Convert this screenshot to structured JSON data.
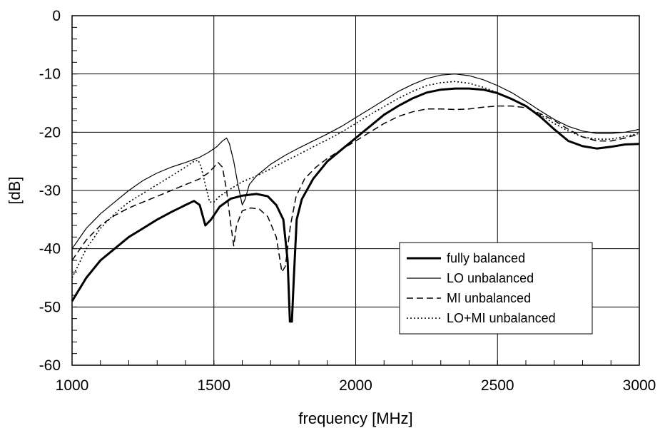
{
  "chart_data": {
    "type": "line",
    "xlabel": "frequency [MHz]",
    "ylabel": "[dB]",
    "xlim": [
      1000,
      3000
    ],
    "ylim": [
      -60,
      0
    ],
    "xticks": [
      1000,
      1500,
      2000,
      2500,
      3000
    ],
    "yticks": [
      0,
      -10,
      -20,
      -30,
      -40,
      -50,
      -60
    ],
    "x_minor_step": 100,
    "y_minor_step": 2,
    "grid": true,
    "legend_position": "lower-right",
    "series": [
      {
        "name": "fully balanced",
        "style": "solid-thick",
        "points": [
          [
            1000,
            -49
          ],
          [
            1050,
            -45
          ],
          [
            1100,
            -42
          ],
          [
            1150,
            -40
          ],
          [
            1200,
            -38
          ],
          [
            1250,
            -36.5
          ],
          [
            1300,
            -35
          ],
          [
            1350,
            -33.7
          ],
          [
            1400,
            -32.5
          ],
          [
            1430,
            -31.8
          ],
          [
            1450,
            -32.5
          ],
          [
            1470,
            -36
          ],
          [
            1490,
            -35
          ],
          [
            1520,
            -32.8
          ],
          [
            1560,
            -31.4
          ],
          [
            1600,
            -30.9
          ],
          [
            1650,
            -30.6
          ],
          [
            1690,
            -31
          ],
          [
            1720,
            -32.5
          ],
          [
            1745,
            -35
          ],
          [
            1760,
            -42
          ],
          [
            1768,
            -52.5
          ],
          [
            1775,
            -52.5
          ],
          [
            1782,
            -45
          ],
          [
            1792,
            -35
          ],
          [
            1810,
            -31.5
          ],
          [
            1850,
            -28
          ],
          [
            1900,
            -25
          ],
          [
            1950,
            -23
          ],
          [
            2000,
            -21
          ],
          [
            2050,
            -19
          ],
          [
            2100,
            -17
          ],
          [
            2150,
            -15.5
          ],
          [
            2200,
            -14.2
          ],
          [
            2250,
            -13.2
          ],
          [
            2300,
            -12.7
          ],
          [
            2350,
            -12.5
          ],
          [
            2400,
            -12.5
          ],
          [
            2450,
            -12.7
          ],
          [
            2500,
            -13.3
          ],
          [
            2550,
            -14.3
          ],
          [
            2600,
            -15.5
          ],
          [
            2650,
            -17.3
          ],
          [
            2700,
            -19.5
          ],
          [
            2750,
            -21.5
          ],
          [
            2800,
            -22.4
          ],
          [
            2850,
            -22.8
          ],
          [
            2900,
            -22.5
          ],
          [
            2950,
            -22.1
          ],
          [
            3000,
            -22
          ]
        ]
      },
      {
        "name": "LO unbalanced",
        "style": "solid-thin",
        "points": [
          [
            1000,
            -40
          ],
          [
            1050,
            -36.5
          ],
          [
            1100,
            -34
          ],
          [
            1150,
            -32
          ],
          [
            1200,
            -30
          ],
          [
            1250,
            -28.3
          ],
          [
            1300,
            -27
          ],
          [
            1350,
            -26
          ],
          [
            1400,
            -25.2
          ],
          [
            1450,
            -24.3
          ],
          [
            1480,
            -23.5
          ],
          [
            1510,
            -22.5
          ],
          [
            1530,
            -21.5
          ],
          [
            1545,
            -21
          ],
          [
            1555,
            -22
          ],
          [
            1570,
            -25
          ],
          [
            1585,
            -29
          ],
          [
            1600,
            -32.5
          ],
          [
            1610,
            -31.5
          ],
          [
            1625,
            -29
          ],
          [
            1650,
            -27.5
          ],
          [
            1700,
            -25.5
          ],
          [
            1750,
            -24
          ],
          [
            1800,
            -22.7
          ],
          [
            1850,
            -21.5
          ],
          [
            1900,
            -20.3
          ],
          [
            1950,
            -19
          ],
          [
            2000,
            -17.5
          ],
          [
            2050,
            -16
          ],
          [
            2100,
            -14.5
          ],
          [
            2150,
            -13
          ],
          [
            2200,
            -11.8
          ],
          [
            2250,
            -10.8
          ],
          [
            2300,
            -10.2
          ],
          [
            2350,
            -10
          ],
          [
            2400,
            -10.3
          ],
          [
            2450,
            -11
          ],
          [
            2500,
            -12
          ],
          [
            2550,
            -13.2
          ],
          [
            2600,
            -14.7
          ],
          [
            2650,
            -16.3
          ],
          [
            2700,
            -17.8
          ],
          [
            2750,
            -19
          ],
          [
            2800,
            -19.8
          ],
          [
            2850,
            -20.2
          ],
          [
            2900,
            -20.2
          ],
          [
            2950,
            -20
          ],
          [
            3000,
            -19.5
          ]
        ]
      },
      {
        "name": "MI unbalanced",
        "style": "dashed",
        "points": [
          [
            1000,
            -42
          ],
          [
            1050,
            -38.5
          ],
          [
            1100,
            -36
          ],
          [
            1150,
            -34.3
          ],
          [
            1200,
            -33
          ],
          [
            1250,
            -32
          ],
          [
            1300,
            -31
          ],
          [
            1350,
            -30
          ],
          [
            1400,
            -29
          ],
          [
            1450,
            -28
          ],
          [
            1480,
            -27
          ],
          [
            1500,
            -26
          ],
          [
            1515,
            -25.2
          ],
          [
            1530,
            -26
          ],
          [
            1545,
            -30
          ],
          [
            1560,
            -36
          ],
          [
            1570,
            -39.5
          ],
          [
            1580,
            -36
          ],
          [
            1600,
            -33.5
          ],
          [
            1630,
            -33
          ],
          [
            1660,
            -33.2
          ],
          [
            1690,
            -34.5
          ],
          [
            1720,
            -38
          ],
          [
            1740,
            -44
          ],
          [
            1752,
            -43
          ],
          [
            1770,
            -36
          ],
          [
            1790,
            -31
          ],
          [
            1820,
            -28
          ],
          [
            1860,
            -26
          ],
          [
            1900,
            -24.5
          ],
          [
            1950,
            -23
          ],
          [
            2000,
            -21.5
          ],
          [
            2050,
            -20
          ],
          [
            2100,
            -18.5
          ],
          [
            2150,
            -17.3
          ],
          [
            2200,
            -16.5
          ],
          [
            2250,
            -16
          ],
          [
            2300,
            -16
          ],
          [
            2350,
            -16.1
          ],
          [
            2400,
            -16
          ],
          [
            2450,
            -15.7
          ],
          [
            2500,
            -15.5
          ],
          [
            2550,
            -15.5
          ],
          [
            2600,
            -15.8
          ],
          [
            2650,
            -16.8
          ],
          [
            2700,
            -18
          ],
          [
            2750,
            -19.5
          ],
          [
            2800,
            -20.8
          ],
          [
            2850,
            -21.5
          ],
          [
            2900,
            -21.5
          ],
          [
            2950,
            -21
          ],
          [
            3000,
            -20.3
          ]
        ]
      },
      {
        "name": "LO+MI unbalanced",
        "style": "dotted",
        "points": [
          [
            1000,
            -45
          ],
          [
            1050,
            -40
          ],
          [
            1100,
            -36.5
          ],
          [
            1150,
            -34
          ],
          [
            1200,
            -32
          ],
          [
            1250,
            -30.5
          ],
          [
            1300,
            -29
          ],
          [
            1350,
            -27.5
          ],
          [
            1400,
            -26
          ],
          [
            1430,
            -25
          ],
          [
            1445,
            -24.8
          ],
          [
            1455,
            -26
          ],
          [
            1470,
            -29
          ],
          [
            1485,
            -32
          ],
          [
            1500,
            -32
          ],
          [
            1520,
            -31
          ],
          [
            1550,
            -30
          ],
          [
            1600,
            -28.5
          ],
          [
            1650,
            -27.5
          ],
          [
            1700,
            -26.3
          ],
          [
            1750,
            -25
          ],
          [
            1800,
            -23.8
          ],
          [
            1850,
            -22.5
          ],
          [
            1900,
            -21.3
          ],
          [
            1950,
            -20
          ],
          [
            2000,
            -18.5
          ],
          [
            2050,
            -17
          ],
          [
            2100,
            -15.6
          ],
          [
            2150,
            -14.2
          ],
          [
            2200,
            -13
          ],
          [
            2250,
            -12
          ],
          [
            2300,
            -11.5
          ],
          [
            2350,
            -11.3
          ],
          [
            2400,
            -11.6
          ],
          [
            2450,
            -12.3
          ],
          [
            2500,
            -13.2
          ],
          [
            2550,
            -14.3
          ],
          [
            2600,
            -15.6
          ],
          [
            2650,
            -17
          ],
          [
            2700,
            -18.5
          ],
          [
            2750,
            -19.8
          ],
          [
            2800,
            -20.8
          ],
          [
            2850,
            -21.2
          ],
          [
            2900,
            -21.2
          ],
          [
            2950,
            -20.7
          ],
          [
            3000,
            -20.2
          ]
        ]
      }
    ]
  }
}
